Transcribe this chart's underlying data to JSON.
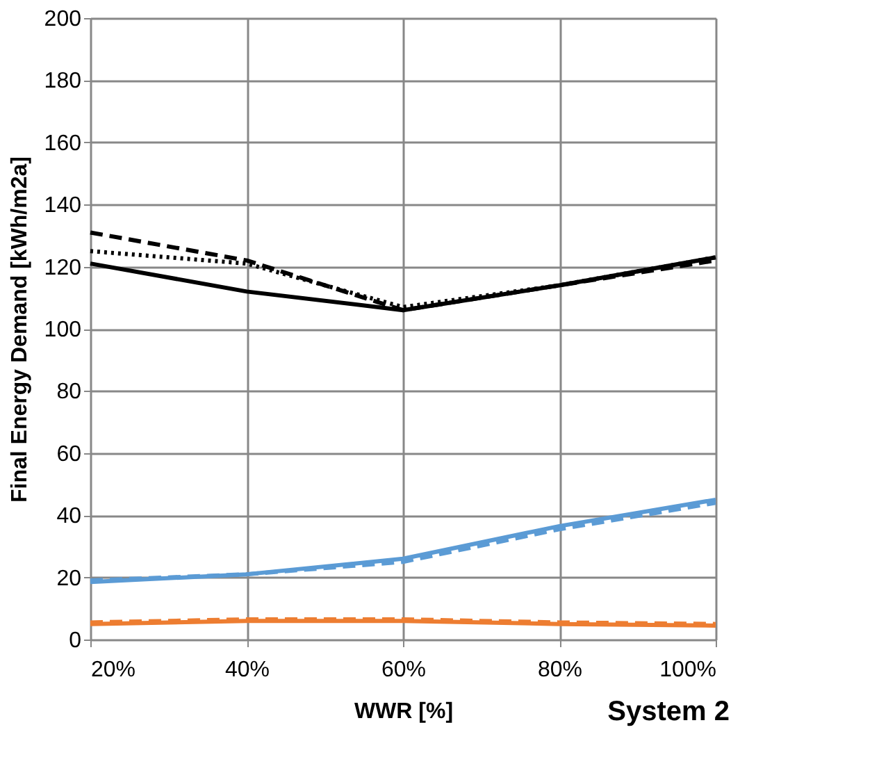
{
  "chart_data": {
    "type": "line",
    "xlabel": "WWR [%]",
    "ylabel": "Final Energy Demand [kWh/m2a]",
    "x": [
      20,
      40,
      60,
      80,
      100
    ],
    "xlim": [
      20,
      100
    ],
    "xticks": [
      {
        "value": 20,
        "label": "20%"
      },
      {
        "value": 40,
        "label": "40%"
      },
      {
        "value": 60,
        "label": "60%"
      },
      {
        "value": 80,
        "label": "80%"
      },
      {
        "value": 100,
        "label": "100%"
      }
    ],
    "ylim": [
      0,
      200
    ],
    "yticks": [
      0,
      20,
      40,
      60,
      80,
      100,
      120,
      140,
      160,
      180,
      200
    ],
    "grid": true,
    "marker": "none",
    "annotations": [
      "System 2"
    ],
    "series": [
      {
        "color": "#000000",
        "line_style": "solid",
        "values": [
          121,
          112,
          106,
          114,
          123
        ]
      },
      {
        "color": "#000000",
        "line_style": "dashed",
        "values": [
          131,
          122,
          106,
          114,
          122
        ]
      },
      {
        "color": "#000000",
        "line_style": "dotted",
        "values": [
          125,
          121,
          107,
          114,
          123
        ]
      },
      {
        "color": "#5b9bd5",
        "line_style": "solid",
        "values": [
          18.5,
          21,
          26,
          36.5,
          45
        ]
      },
      {
        "color": "#5b9bd5",
        "line_style": "dashed",
        "values": [
          19,
          21,
          25,
          35.5,
          44
        ]
      },
      {
        "color": "#ed7d31",
        "line_style": "solid",
        "values": [
          5,
          6,
          6,
          5,
          4.5
        ]
      },
      {
        "color": "#ed7d31",
        "line_style": "dashed",
        "values": [
          5.5,
          6.5,
          6.5,
          5.5,
          5
        ]
      }
    ]
  }
}
